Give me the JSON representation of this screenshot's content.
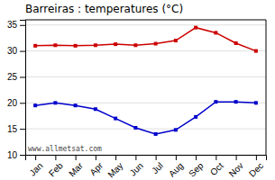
{
  "chart_data": {
    "type": "line",
    "title": "Barreiras : temperatures (°C)",
    "categories": [
      "Jan",
      "Feb",
      "Mar",
      "Apr",
      "May",
      "Jun",
      "Jul",
      "Aug",
      "Sep",
      "Oct",
      "Nov",
      "Dec"
    ],
    "series": [
      {
        "color": "#cc0000",
        "marker": "square",
        "values": [
          31.0,
          31.1,
          31.0,
          31.1,
          31.3,
          31.1,
          31.4,
          32.0,
          34.5,
          33.5,
          31.5,
          30.0
        ]
      },
      {
        "color": "#0000cc",
        "marker": "square",
        "values": [
          19.5,
          20.0,
          19.5,
          18.8,
          17.0,
          15.2,
          14.0,
          14.8,
          17.3,
          20.2,
          20.2,
          20.0
        ]
      }
    ],
    "ylim": [
      10,
      36
    ],
    "yticks": [
      10,
      15,
      20,
      25,
      30,
      35
    ],
    "grid": true,
    "annotation": "www.allmetsat.com"
  }
}
